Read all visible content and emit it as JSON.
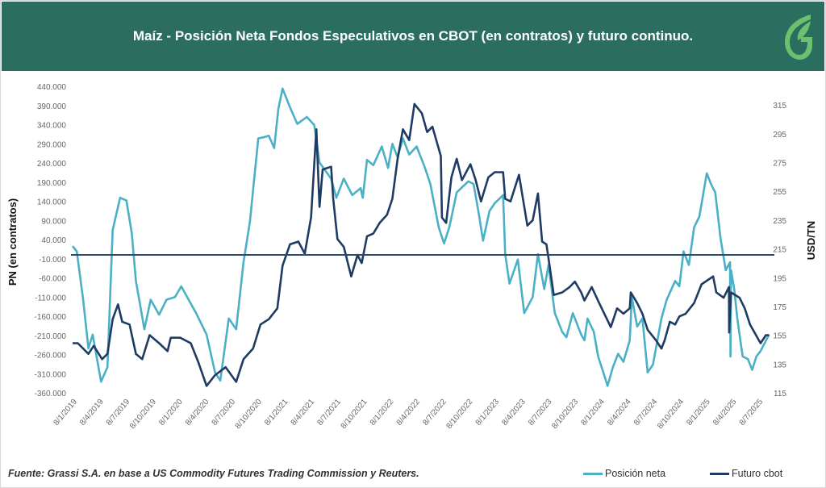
{
  "header": {
    "title": "Maíz - Posición Neta Fondos Especulativos en CBOT (en contratos) y futuro continuo.",
    "logo": "G"
  },
  "footer": {
    "source": "Fuente: Grassi S.A. en base a US Commodity  Futures Trading Commission y Reuters."
  },
  "colors": {
    "header": "#2b6e60",
    "net": "#4bb0c6",
    "futures": "#1f3b63",
    "logo": "#6cc070"
  },
  "chart_data": {
    "type": "line",
    "title": "Maíz - Posición Neta Fondos Especulativos en CBOT (en contratos) y futuro continuo.",
    "ylabel": "PN  (en contratos)",
    "y2label": "USD/TN",
    "ylim": [
      -360000,
      440000
    ],
    "y2lim": [
      115,
      328
    ],
    "xlim": [
      2019.0,
      2025.62
    ],
    "grid": false,
    "legend_position": "bottom-right",
    "reference_line": {
      "axis": "left",
      "value": 0
    },
    "yticks": [
      "440.000",
      "390.000",
      "340.000",
      "290.000",
      "240.000",
      "190.000",
      "140.000",
      "90.000",
      "40.000",
      "-10.000",
      "-60.000",
      "-110.000",
      "-160.000",
      "-210.000",
      "-260.000",
      "-310.000",
      "-360.000"
    ],
    "y2ticks": [
      "315",
      "295",
      "275",
      "255",
      "235",
      "215",
      "195",
      "175",
      "155",
      "135",
      "115"
    ],
    "xticks": [
      "8/1/2019",
      "8/4/2019",
      "8/7/2019",
      "8/10/2019",
      "8/1/2020",
      "8/4/2020",
      "8/7/2020",
      "8/10/2020",
      "8/1/2021",
      "8/4/2021",
      "8/7/2021",
      "8/10/2021",
      "8/1/2022",
      "8/4/2022",
      "8/7/2022",
      "8/10/2022",
      "8/1/2023",
      "8/4/2023",
      "8/7/2023",
      "8/10/2023",
      "8/1/2024",
      "8/4/2024",
      "8/7/2024",
      "8/10/2024",
      "8/1/2025",
      "8/4/2025",
      "8/7/2025"
    ],
    "series": [
      {
        "name": "Posición neta",
        "axis": "left",
        "x": [
          2019.0,
          2019.04,
          2019.1,
          2019.15,
          2019.19,
          2019.27,
          2019.33,
          2019.38,
          2019.45,
          2019.51,
          2019.56,
          2019.6,
          2019.68,
          2019.74,
          2019.82,
          2019.89,
          2019.97,
          2020.03,
          2020.1,
          2020.17,
          2020.27,
          2020.35,
          2020.4,
          2020.48,
          2020.55,
          2020.62,
          2020.68,
          2020.76,
          2020.81,
          2020.86,
          2020.91,
          2020.95,
          2020.99,
          2021.06,
          2021.13,
          2021.22,
          2021.29,
          2021.34,
          2021.45,
          2021.5,
          2021.57,
          2021.65,
          2021.73,
          2021.75,
          2021.79,
          2021.85,
          2021.93,
          2021.99,
          2022.03,
          2022.08,
          2022.13,
          2022.19,
          2022.26,
          2022.34,
          2022.39,
          2022.47,
          2022.52,
          2022.57,
          2022.64,
          2022.75,
          2022.8,
          2022.85,
          2022.89,
          2022.95,
          2023.0,
          2023.08,
          2023.1,
          2023.14,
          2023.22,
          2023.28,
          2023.36,
          2023.41,
          2023.47,
          2023.51,
          2023.57,
          2023.64,
          2023.68,
          2023.74,
          2023.82,
          2023.85,
          2023.88,
          2023.94,
          2023.98,
          2024.03,
          2024.07,
          2024.12,
          2024.17,
          2024.22,
          2024.28,
          2024.3,
          2024.35,
          2024.4,
          2024.45,
          2024.5,
          2024.58,
          2024.63,
          2024.71,
          2024.75,
          2024.79,
          2024.84,
          2024.89,
          2024.94,
          2025.01,
          2025.05,
          2025.09,
          2025.14,
          2025.19,
          2025.23,
          2025.235,
          2025.24,
          2025.27,
          2025.3,
          2025.32,
          2025.35,
          2025.4,
          2025.44,
          2025.48,
          2025.52,
          2025.6
        ],
        "values": [
          23000,
          9000,
          -117000,
          -244000,
          -208000,
          -331000,
          -293000,
          65000,
          149000,
          142000,
          58000,
          -68000,
          -194000,
          -117000,
          -156000,
          -117000,
          -110000,
          -82000,
          -117000,
          -152000,
          -208000,
          -307000,
          -328000,
          -166000,
          -194000,
          -19000,
          86000,
          304000,
          307000,
          311000,
          279000,
          381000,
          434000,
          385000,
          342000,
          360000,
          339000,
          241000,
          199000,
          149000,
          199000,
          156000,
          174000,
          149000,
          248000,
          234000,
          283000,
          227000,
          290000,
          255000,
          304000,
          262000,
          283000,
          227000,
          185000,
          72000,
          30000,
          72000,
          163000,
          192000,
          185000,
          107000,
          37000,
          114000,
          135000,
          156000,
          2000,
          -75000,
          -12000,
          -152000,
          -110000,
          2000,
          -89000,
          -26000,
          -152000,
          -201000,
          -215000,
          -152000,
          -208000,
          -223000,
          -166000,
          -201000,
          -265000,
          -307000,
          -342000,
          -293000,
          -258000,
          -279000,
          -223000,
          -110000,
          -187000,
          -166000,
          -307000,
          -286000,
          -166000,
          -117000,
          -68000,
          -82000,
          9000,
          -26000,
          72000,
          100000,
          213000,
          185000,
          163000,
          44000,
          -40000,
          -19000,
          -265000,
          -40000,
          -89000,
          -166000,
          -208000,
          -265000,
          -272000,
          -300000,
          -265000,
          -251000,
          -208000
        ]
      },
      {
        "name": "Futuro cbot",
        "axis": "right",
        "x": [
          2019.0,
          2019.05,
          2019.15,
          2019.2,
          2019.28,
          2019.33,
          2019.38,
          2019.43,
          2019.47,
          2019.54,
          2019.6,
          2019.66,
          2019.73,
          2019.82,
          2019.9,
          2019.93,
          2020.02,
          2020.12,
          2020.19,
          2020.27,
          2020.35,
          2020.45,
          2020.55,
          2020.62,
          2020.71,
          2020.78,
          2020.86,
          2020.94,
          2020.99,
          2021.06,
          2021.14,
          2021.2,
          2021.26,
          2021.31,
          2021.34,
          2021.37,
          2021.45,
          2021.47,
          2021.51,
          2021.57,
          2021.64,
          2021.7,
          2021.74,
          2021.79,
          2021.85,
          2021.91,
          2021.98,
          2022.03,
          2022.08,
          2022.13,
          2022.19,
          2022.24,
          2022.31,
          2022.36,
          2022.41,
          2022.49,
          2022.5,
          2022.54,
          2022.59,
          2022.64,
          2022.69,
          2022.77,
          2022.82,
          2022.87,
          2022.94,
          2023.0,
          2023.08,
          2023.1,
          2023.15,
          2023.23,
          2023.31,
          2023.36,
          2023.41,
          2023.45,
          2023.49,
          2023.52,
          2023.56,
          2023.64,
          2023.71,
          2023.76,
          2023.82,
          2023.85,
          2023.92,
          2023.99,
          2024.1,
          2024.16,
          2024.22,
          2024.28,
          2024.29,
          2024.35,
          2024.4,
          2024.45,
          2024.53,
          2024.58,
          2024.61,
          2024.66,
          2024.71,
          2024.75,
          2024.81,
          2024.89,
          2024.96,
          2025.07,
          2025.1,
          2025.17,
          2025.22,
          2025.222,
          2025.24,
          2025.32,
          2025.37,
          2025.42,
          2025.52,
          2025.57,
          2025.6
        ],
        "values": [
          149.5,
          149.5,
          142.1,
          147.7,
          138.4,
          142.1,
          166.2,
          176.5,
          164.4,
          162.5,
          142.1,
          138.4,
          155.1,
          149.5,
          144.0,
          153.3,
          153.3,
          149.5,
          136.5,
          119.8,
          127.3,
          132.8,
          122.6,
          138.4,
          145.8,
          162.5,
          166.2,
          173.7,
          203.4,
          218.2,
          220.1,
          211.7,
          236.8,
          298.1,
          244.2,
          270.2,
          272.1,
          249.8,
          221.9,
          216.4,
          195.9,
          210.8,
          205.2,
          223.8,
          225.7,
          233.1,
          238.7,
          249.8,
          277.6,
          298.1,
          290.6,
          315.7,
          309.2,
          296.2,
          299.9,
          279.5,
          236.8,
          233.1,
          264.7,
          277.6,
          262.8,
          273.9,
          262.8,
          248.0,
          264.7,
          268.3,
          268.3,
          249.8,
          248.0,
          266.5,
          231.2,
          234.9,
          253.5,
          220.1,
          218.2,
          203.4,
          183.0,
          184.8,
          188.5,
          192.3,
          184.8,
          179.2,
          188.5,
          177.4,
          160.7,
          173.7,
          170.0,
          173.7,
          184.8,
          177.4,
          170.0,
          158.8,
          151.4,
          145.8,
          151.4,
          164.4,
          162.5,
          168.1,
          170.0,
          177.4,
          190.4,
          195.9,
          184.8,
          181.1,
          188.5,
          157.0,
          184.8,
          181.1,
          173.7,
          162.5,
          149.5,
          155.1,
          155.1
        ]
      }
    ]
  }
}
